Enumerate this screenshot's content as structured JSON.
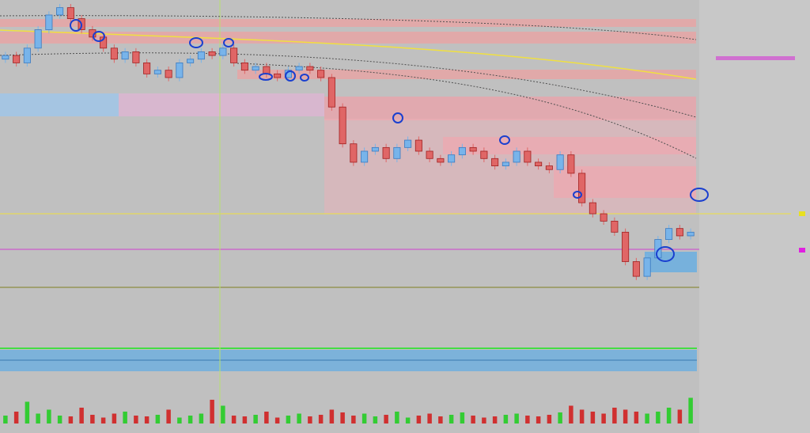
{
  "chart_data": {
    "type": "candlestick",
    "ylim": [
      0,
      100
    ],
    "open": [
      85,
      86,
      84,
      88,
      93,
      97,
      99,
      96,
      93,
      91,
      88,
      85,
      87,
      84,
      81,
      82,
      80,
      84,
      85,
      87,
      86,
      88,
      84,
      82,
      83,
      81,
      80,
      82,
      83,
      82,
      80,
      72,
      62,
      57,
      60,
      61,
      58,
      61,
      63,
      60,
      58,
      57,
      59,
      61,
      60,
      58,
      56,
      57,
      60,
      57,
      56,
      55,
      59,
      54,
      46,
      43,
      41,
      38,
      30,
      26,
      31,
      36,
      39,
      37
    ],
    "high": [
      87,
      87,
      89,
      94,
      98,
      100,
      100,
      97,
      94,
      92,
      89,
      88,
      88,
      85,
      83,
      83,
      85,
      86,
      88,
      88,
      89,
      89,
      85,
      84,
      84,
      82,
      83,
      84,
      84,
      83,
      81,
      73,
      63,
      61,
      62,
      62,
      62,
      64,
      64,
      61,
      59,
      60,
      62,
      62,
      61,
      59,
      58,
      61,
      61,
      58,
      57,
      60,
      60,
      55,
      47,
      44,
      42,
      39,
      31,
      32,
      37,
      40,
      40,
      39
    ],
    "low": [
      84,
      83,
      83,
      87,
      92,
      96,
      95,
      92,
      90,
      87,
      84,
      84,
      83,
      80,
      80,
      79,
      79,
      83,
      84,
      85,
      85,
      83,
      81,
      81,
      80,
      79,
      79,
      81,
      81,
      79,
      71,
      61,
      56,
      56,
      59,
      57,
      57,
      60,
      59,
      57,
      56,
      56,
      58,
      59,
      57,
      55,
      55,
      56,
      56,
      55,
      54,
      54,
      53,
      45,
      42,
      40,
      37,
      29,
      25,
      25,
      30,
      35,
      36,
      36
    ],
    "close": [
      86,
      84,
      88,
      93,
      97,
      99,
      96,
      93,
      91,
      88,
      85,
      87,
      84,
      81,
      82,
      80,
      84,
      85,
      87,
      86,
      88,
      84,
      82,
      83,
      81,
      80,
      82,
      83,
      82,
      80,
      72,
      62,
      57,
      60,
      61,
      58,
      61,
      63,
      60,
      58,
      57,
      59,
      61,
      60,
      58,
      56,
      57,
      60,
      57,
      56,
      55,
      59,
      54,
      46,
      43,
      41,
      38,
      30,
      26,
      31,
      36,
      39,
      37,
      38
    ],
    "volume": [
      20,
      30,
      55,
      25,
      35,
      20,
      18,
      40,
      22,
      15,
      25,
      30,
      20,
      18,
      22,
      35,
      15,
      20,
      25,
      60,
      45,
      20,
      18,
      22,
      30,
      15,
      20,
      25,
      18,
      22,
      35,
      28,
      20,
      25,
      18,
      22,
      30,
      15,
      20,
      25,
      18,
      22,
      28,
      20,
      15,
      18,
      22,
      25,
      20,
      18,
      22,
      28,
      45,
      35,
      30,
      25,
      40,
      35,
      30,
      25,
      30,
      40,
      35,
      65
    ],
    "volume_lim": [
      0,
      100
    ],
    "up_color": "#78b4ea",
    "down_color": "#e06666",
    "volume_up_color": "#33cc33",
    "volume_down_color": "#d03030"
  }
}
